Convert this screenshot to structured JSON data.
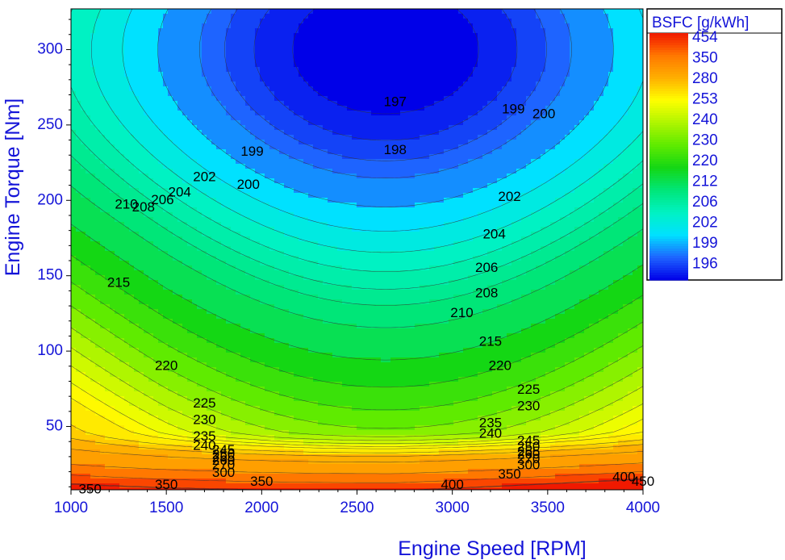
{
  "chart_data": {
    "type": "contour",
    "title": "",
    "xlabel": "Engine Speed [RPM]",
    "ylabel": "Engine Torque [Nm]",
    "xlim": [
      1000,
      4000
    ],
    "ylim": [
      8,
      327
    ],
    "x_ticks": [
      1000,
      1500,
      2000,
      2500,
      3000,
      3500,
      4000
    ],
    "y_ticks": [
      50,
      100,
      150,
      200,
      250,
      300
    ],
    "legend": {
      "title": "BSFC [g/kWh]",
      "position": "top-right",
      "entries": [
        "454",
        "350",
        "280",
        "253",
        "240",
        "230",
        "220",
        "212",
        "206",
        "202",
        "199",
        "196"
      ]
    },
    "levels": [
      196,
      197,
      198,
      199,
      200,
      202,
      204,
      206,
      208,
      210,
      212,
      215,
      220,
      225,
      230,
      235,
      240,
      245,
      250,
      255,
      260,
      270,
      280,
      300,
      350,
      400,
      450,
      454
    ],
    "contour_labels": [
      {
        "text": "197",
        "x": 2700,
        "y": 265
      },
      {
        "text": "198",
        "x": 2700,
        "y": 233
      },
      {
        "text": "199",
        "x": 1950,
        "y": 232
      },
      {
        "text": "199",
        "x": 3320,
        "y": 260
      },
      {
        "text": "200",
        "x": 1930,
        "y": 210
      },
      {
        "text": "200",
        "x": 3480,
        "y": 257
      },
      {
        "text": "202",
        "x": 1700,
        "y": 215
      },
      {
        "text": "202",
        "x": 3300,
        "y": 202
      },
      {
        "text": "204",
        "x": 1570,
        "y": 205
      },
      {
        "text": "204",
        "x": 3220,
        "y": 177
      },
      {
        "text": "206",
        "x": 1480,
        "y": 200
      },
      {
        "text": "206",
        "x": 3180,
        "y": 155
      },
      {
        "text": "208",
        "x": 1380,
        "y": 195
      },
      {
        "text": "208",
        "x": 3180,
        "y": 138
      },
      {
        "text": "210",
        "x": 1290,
        "y": 197
      },
      {
        "text": "210",
        "x": 3050,
        "y": 125
      },
      {
        "text": "215",
        "x": 1250,
        "y": 145
      },
      {
        "text": "215",
        "x": 3200,
        "y": 106
      },
      {
        "text": "220",
        "x": 1500,
        "y": 90
      },
      {
        "text": "220",
        "x": 3250,
        "y": 90
      },
      {
        "text": "225",
        "x": 1700,
        "y": 65
      },
      {
        "text": "225",
        "x": 3400,
        "y": 74
      },
      {
        "text": "230",
        "x": 1700,
        "y": 54
      },
      {
        "text": "230",
        "x": 3400,
        "y": 63
      },
      {
        "text": "235",
        "x": 1700,
        "y": 43
      },
      {
        "text": "235",
        "x": 3200,
        "y": 52
      },
      {
        "text": "240",
        "x": 1700,
        "y": 37
      },
      {
        "text": "240",
        "x": 3200,
        "y": 45
      },
      {
        "text": "245",
        "x": 1800,
        "y": 34
      },
      {
        "text": "245",
        "x": 3400,
        "y": 40
      },
      {
        "text": "250",
        "x": 1800,
        "y": 31
      },
      {
        "text": "250",
        "x": 3400,
        "y": 36
      },
      {
        "text": "255",
        "x": 1800,
        "y": 29
      },
      {
        "text": "255",
        "x": 3400,
        "y": 33
      },
      {
        "text": "260",
        "x": 1800,
        "y": 27
      },
      {
        "text": "260",
        "x": 3400,
        "y": 31
      },
      {
        "text": "270",
        "x": 1800,
        "y": 24
      },
      {
        "text": "270",
        "x": 3400,
        "y": 28
      },
      {
        "text": "300",
        "x": 1800,
        "y": 19
      },
      {
        "text": "300",
        "x": 3400,
        "y": 24
      },
      {
        "text": "350",
        "x": 1100,
        "y": 8
      },
      {
        "text": "350",
        "x": 1500,
        "y": 11
      },
      {
        "text": "350",
        "x": 2000,
        "y": 13
      },
      {
        "text": "350",
        "x": 3300,
        "y": 18
      },
      {
        "text": "400",
        "x": 3000,
        "y": 11
      },
      {
        "text": "400",
        "x": 3900,
        "y": 16
      },
      {
        "text": "450",
        "x": 4000,
        "y": 13
      }
    ]
  }
}
